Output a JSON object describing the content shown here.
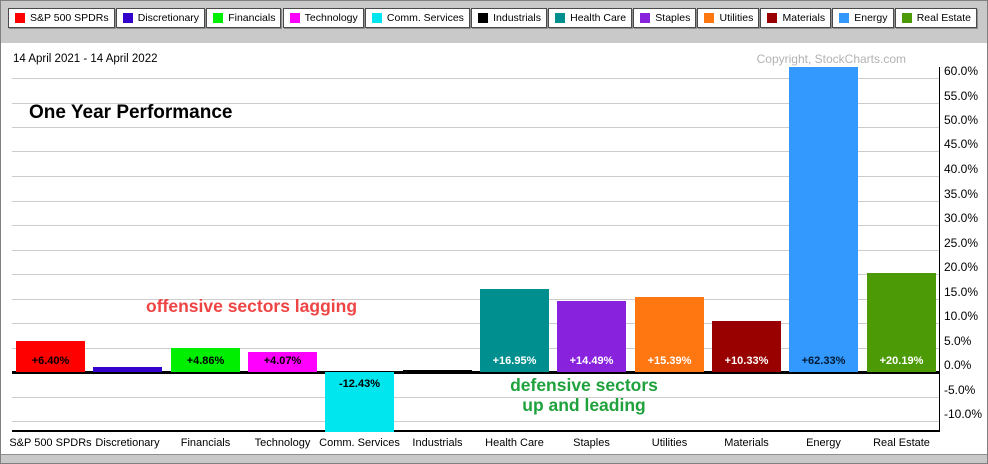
{
  "header": {
    "date_range": "14 April 2021 - 14 April 2022",
    "title": "One Year Performance",
    "copyright": "Copyright, StockCharts.com"
  },
  "legend": {
    "items": [
      {
        "label": "S&P 500 SPDRs",
        "color": "#FF0000"
      },
      {
        "label": "Discretionary",
        "color": "#3300CC"
      },
      {
        "label": "Financials",
        "color": "#00EE00"
      },
      {
        "label": "Technology",
        "color": "#FF00FF"
      },
      {
        "label": "Comm. Services",
        "color": "#00E6EE"
      },
      {
        "label": "Industrials",
        "color": "#000000"
      },
      {
        "label": "Health Care",
        "color": "#008F8F"
      },
      {
        "label": "Staples",
        "color": "#8822DD"
      },
      {
        "label": "Utilities",
        "color": "#FF7711"
      },
      {
        "label": "Materials",
        "color": "#990000"
      },
      {
        "label": "Energy",
        "color": "#3399FF"
      },
      {
        "label": "Real Estate",
        "color": "#4C9A06"
      }
    ]
  },
  "annotations": {
    "offensive": {
      "text": "offensive sectors lagging",
      "color": "#EE4444"
    },
    "defensive": {
      "line1": "defensive sectors",
      "line2": "up and leading",
      "color": "#1FA23C"
    }
  },
  "chart_data": {
    "type": "bar",
    "title": "One Year Performance",
    "date_range": "14 April 2021 - 14 April 2022",
    "categories": [
      "S&P 500 SPDRs",
      "Discretionary",
      "Financials",
      "Technology",
      "Comm. Services",
      "Industrials",
      "Health Care",
      "Staples",
      "Utilities",
      "Materials",
      "Energy",
      "Real Estate"
    ],
    "values": [
      6.4,
      1.1,
      4.86,
      4.07,
      -12.43,
      0.4,
      16.95,
      14.49,
      15.39,
      10.33,
      62.33,
      20.19
    ],
    "bar_labels": [
      "+6.40%",
      "",
      "+4.86%",
      "+4.07%",
      "-12.43%",
      "",
      "+16.95%",
      "+14.49%",
      "+15.39%",
      "+10.33%",
      "+62.33%",
      "+20.19%"
    ],
    "bar_colors": [
      "#FF0000",
      "#3300CC",
      "#00EE00",
      "#FF00FF",
      "#00E6EE",
      "#000000",
      "#008F8F",
      "#8822DD",
      "#FF7711",
      "#990000",
      "#3399FF",
      "#4C9A06"
    ],
    "bar_label_colors": [
      "#000000",
      "",
      "#000000",
      "#000000",
      "#000000",
      "",
      "#FFFFFF",
      "#FFFFFF",
      "#FFFFFF",
      "#FFFFFF",
      "#001933",
      "#FFFFFF"
    ],
    "y_ticks": [
      {
        "label": "60.0%",
        "value": 60
      },
      {
        "label": "55.0%",
        "value": 55
      },
      {
        "label": "50.0%",
        "value": 50
      },
      {
        "label": "45.0%",
        "value": 45
      },
      {
        "label": "40.0%",
        "value": 40
      },
      {
        "label": "35.0%",
        "value": 35
      },
      {
        "label": "30.0%",
        "value": 30
      },
      {
        "label": "25.0%",
        "value": 25
      },
      {
        "label": "20.0%",
        "value": 20
      },
      {
        "label": "15.0%",
        "value": 15
      },
      {
        "label": "10.0%",
        "value": 10
      },
      {
        "label": "5.0%",
        "value": 5
      },
      {
        "label": "0.0%",
        "value": 0
      },
      {
        "label": "-5.0%",
        "value": -5
      },
      {
        "label": "-10.0%",
        "value": -10
      }
    ],
    "ylim": [
      -12,
      62.3
    ],
    "grid": true,
    "legend_position": "top"
  }
}
